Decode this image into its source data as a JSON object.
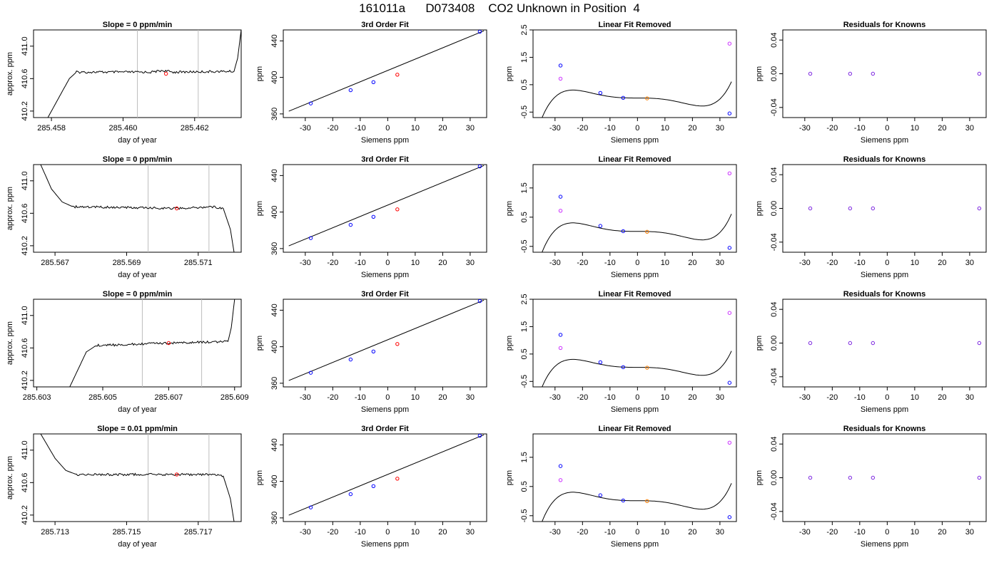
{
  "page_title": "161011a      D073408    CO2 Unknown in Position  4",
  "colors": {
    "axis": "#000000",
    "vline": "#bebebe",
    "known": "#0000ff",
    "unknown": "#ff0000",
    "removed_unknown": "#ff7f00",
    "outlier": "#cc33ff",
    "residual": "#7a22e0"
  },
  "chart_data": [
    {
      "panel": "row1-time",
      "type": "line",
      "title": "Slope =  0  ppm/min",
      "xlabel": "day of year",
      "ylabel": "approx. ppm",
      "xlim": [
        285.4575,
        285.4633
      ],
      "ylim": [
        410.12,
        411.2
      ],
      "xticks": [
        285.458,
        285.46,
        285.462
      ],
      "xtick_labels": [
        "285.458",
        "285.460",
        "285.462"
      ],
      "yticks": [
        410.2,
        410.6,
        411.0
      ],
      "ytick_labels": [
        "410.2",
        "410.6",
        "411.0"
      ],
      "vlines": [
        285.4604,
        285.4621
      ],
      "marker": [
        285.4612,
        410.66
      ],
      "profile": {
        "x": [
          285.4579,
          285.4585,
          285.4587,
          285.4608,
          285.4611,
          285.4614,
          285.4631,
          285.4632,
          285.4633
        ],
        "y": [
          410.12,
          410.6,
          410.68,
          410.68,
          410.7,
          410.68,
          410.69,
          410.85,
          411.2
        ]
      }
    },
    {
      "panel": "row1-fit",
      "type": "scatter",
      "title": "3rd Order Fit",
      "xlabel": "Siemens ppm",
      "ylabel": "ppm",
      "xlim": [
        -38,
        36
      ],
      "ylim": [
        356,
        452
      ],
      "xticks": [
        -30,
        -20,
        -10,
        0,
        10,
        20,
        30
      ],
      "yticks": [
        360,
        400,
        440
      ],
      "knowns": {
        "x": [
          -28,
          -13.5,
          -5.2,
          33.5
        ],
        "y": [
          371.5,
          386,
          394.8,
          450
        ]
      },
      "unknown": {
        "x": [
          3.5
        ],
        "y": [
          403
        ]
      },
      "line": {
        "x": [
          -36,
          35
        ],
        "y": [
          363,
          451
        ]
      }
    },
    {
      "panel": "row1-linear",
      "type": "scatter",
      "title": "Linear Fit Removed",
      "xlabel": "Siemens ppm",
      "ylabel": "ppm",
      "xlim": [
        -38,
        36
      ],
      "ylim": [
        -0.7,
        2.5
      ],
      "xticks": [
        -30,
        -20,
        -10,
        0,
        10,
        20,
        30
      ],
      "yticks": [
        -0.5,
        0.5,
        1.5,
        2.5
      ],
      "knowns": {
        "x": [
          -28,
          -13.5,
          -5.2,
          33.5
        ],
        "y": [
          1.2,
          0.2,
          0.02,
          -0.55
        ]
      },
      "unknown": {
        "x": [
          3.5
        ],
        "y": [
          0.0
        ]
      },
      "outliers": {
        "x": [
          -28,
          33.5
        ],
        "y": [
          0.72,
          2.0
        ]
      },
      "curve": {
        "x0": -36,
        "x1": 34.2,
        "a": 0.0135,
        "b": -0.0003,
        "c": -5.5e-05,
        "d": 6e-08
      }
    },
    {
      "panel": "row1-resid",
      "type": "scatter",
      "title": "Residuals for Knowns",
      "xlabel": "Siemens ppm",
      "ylabel": "ppm",
      "xlim": [
        -38,
        36
      ],
      "ylim": [
        -0.052,
        0.052
      ],
      "xticks": [
        -30,
        -20,
        -10,
        0,
        10,
        20,
        30
      ],
      "yticks": [
        -0.04,
        0.0,
        0.04
      ],
      "ytick_labels": [
        "-0.04",
        "0.00",
        "0.04"
      ],
      "points": {
        "x": [
          -28,
          -13.5,
          -5.2,
          33.5
        ],
        "y": [
          0,
          0,
          0,
          0
        ]
      }
    },
    {
      "panel": "row2-time",
      "type": "line",
      "title": "Slope =  0  ppm/min",
      "xlabel": "day of year",
      "ylabel": "approx. ppm",
      "xlim": [
        285.5664,
        285.5722
      ],
      "ylim": [
        410.12,
        411.2
      ],
      "xticks": [
        285.567,
        285.569,
        285.571
      ],
      "xtick_labels": [
        "285.567",
        "285.569",
        "285.571"
      ],
      "yticks": [
        410.2,
        410.6,
        411.0
      ],
      "ytick_labels": [
        "410.2",
        "410.6",
        "411.0"
      ],
      "vlines": [
        285.5696,
        285.5713
      ],
      "marker": [
        285.5704,
        410.66
      ],
      "profile": {
        "x": [
          285.5666,
          285.5669,
          285.5672,
          285.5675,
          285.5705,
          285.5714,
          285.5717,
          285.5719,
          285.572
        ],
        "y": [
          411.2,
          410.9,
          410.74,
          410.68,
          410.66,
          410.68,
          410.66,
          410.4,
          410.12
        ]
      }
    },
    {
      "panel": "row2-fit",
      "type": "scatter",
      "title": "3rd Order Fit",
      "xlabel": "Siemens ppm",
      "ylabel": "ppm",
      "xlim": [
        -38,
        36
      ],
      "ylim": [
        356,
        452
      ],
      "xticks": [
        -30,
        -20,
        -10,
        0,
        10,
        20,
        30
      ],
      "yticks": [
        360,
        400,
        440
      ],
      "knowns": {
        "x": [
          -28,
          -13.5,
          -5.2,
          33.5
        ],
        "y": [
          371.5,
          386,
          394.8,
          450
        ]
      },
      "unknown": {
        "x": [
          3.5
        ],
        "y": [
          403
        ]
      },
      "line": {
        "x": [
          -36,
          35
        ],
        "y": [
          363,
          451
        ]
      }
    },
    {
      "panel": "row2-linear",
      "type": "scatter",
      "title": "Linear Fit Removed",
      "xlabel": "Siemens ppm",
      "ylabel": "ppm",
      "xlim": [
        -38,
        36
      ],
      "ylim": [
        -0.7,
        2.3
      ],
      "xticks": [
        -30,
        -20,
        -10,
        0,
        10,
        20,
        30
      ],
      "yticks": [
        -0.5,
        0.5,
        1.5
      ],
      "knowns": {
        "x": [
          -28,
          -13.5,
          -5.2,
          33.5
        ],
        "y": [
          1.2,
          0.2,
          0.02,
          -0.55
        ]
      },
      "unknown": {
        "x": [
          3.5
        ],
        "y": [
          0.0
        ]
      },
      "outliers": {
        "x": [
          -28,
          33.5
        ],
        "y": [
          0.72,
          2.0
        ]
      },
      "curve": {
        "x0": -36,
        "x1": 34.2,
        "a": 0.0135,
        "b": -0.0003,
        "c": -5.5e-05,
        "d": 6e-08
      }
    },
    {
      "panel": "row2-resid",
      "type": "scatter",
      "title": "Residuals for Knowns",
      "xlabel": "Siemens ppm",
      "ylabel": "ppm",
      "xlim": [
        -38,
        36
      ],
      "ylim": [
        -0.052,
        0.052
      ],
      "xticks": [
        -30,
        -20,
        -10,
        0,
        10,
        20,
        30
      ],
      "yticks": [
        -0.04,
        0.0,
        0.04
      ],
      "ytick_labels": [
        "-0.04",
        "0.00",
        "0.04"
      ],
      "points": {
        "x": [
          -28,
          -13.5,
          -5.2,
          33.5
        ],
        "y": [
          0,
          0,
          0,
          0
        ]
      }
    },
    {
      "panel": "row3-time",
      "type": "line",
      "title": "Slope =  0  ppm/min",
      "xlabel": "day of year",
      "ylabel": "approx. ppm",
      "xlim": [
        285.6029,
        285.6092
      ],
      "ylim": [
        410.12,
        411.2
      ],
      "xticks": [
        285.603,
        285.605,
        285.607,
        285.609
      ],
      "xtick_labels": [
        "285.603",
        "285.605",
        "285.607",
        "285.609"
      ],
      "yticks": [
        410.2,
        410.6,
        411.0
      ],
      "ytick_labels": [
        "410.2",
        "410.6",
        "411.0"
      ],
      "vlines": [
        285.6062,
        285.608
      ],
      "marker": [
        285.607,
        410.66
      ],
      "profile": {
        "x": [
          285.604,
          285.6045,
          285.6048,
          285.607,
          285.6088,
          285.6089,
          285.609
        ],
        "y": [
          410.12,
          410.55,
          410.63,
          410.66,
          410.68,
          410.85,
          411.2
        ]
      }
    },
    {
      "panel": "row3-fit",
      "type": "scatter",
      "title": "3rd Order Fit",
      "xlabel": "Siemens ppm",
      "ylabel": "ppm",
      "xlim": [
        -38,
        36
      ],
      "ylim": [
        356,
        452
      ],
      "xticks": [
        -30,
        -20,
        -10,
        0,
        10,
        20,
        30
      ],
      "yticks": [
        360,
        400,
        440
      ],
      "knowns": {
        "x": [
          -28,
          -13.5,
          -5.2,
          33.5
        ],
        "y": [
          371.5,
          386,
          394.8,
          450
        ]
      },
      "unknown": {
        "x": [
          3.5
        ],
        "y": [
          403
        ]
      },
      "line": {
        "x": [
          -36,
          35
        ],
        "y": [
          363,
          451
        ]
      }
    },
    {
      "panel": "row3-linear",
      "type": "scatter",
      "title": "Linear Fit Removed",
      "xlabel": "Siemens ppm",
      "ylabel": "ppm",
      "xlim": [
        -38,
        36
      ],
      "ylim": [
        -0.7,
        2.5
      ],
      "xticks": [
        -30,
        -20,
        -10,
        0,
        10,
        20,
        30
      ],
      "yticks": [
        -0.5,
        0.5,
        1.5,
        2.5
      ],
      "knowns": {
        "x": [
          -28,
          -13.5,
          -5.2,
          33.5
        ],
        "y": [
          1.2,
          0.2,
          0.02,
          -0.55
        ]
      },
      "unknown": {
        "x": [
          3.5
        ],
        "y": [
          0.0
        ]
      },
      "outliers": {
        "x": [
          -28,
          33.5
        ],
        "y": [
          0.72,
          2.0
        ]
      },
      "curve": {
        "x0": -36,
        "x1": 34.2,
        "a": 0.0135,
        "b": -0.0003,
        "c": -5.5e-05,
        "d": 6e-08
      }
    },
    {
      "panel": "row3-resid",
      "type": "scatter",
      "title": "Residuals for Knowns",
      "xlabel": "Siemens ppm",
      "ylabel": "ppm",
      "xlim": [
        -38,
        36
      ],
      "ylim": [
        -0.052,
        0.052
      ],
      "xticks": [
        -30,
        -20,
        -10,
        0,
        10,
        20,
        30
      ],
      "yticks": [
        -0.04,
        0.0,
        0.04
      ],
      "ytick_labels": [
        "-0.04",
        "0.00",
        "0.04"
      ],
      "points": {
        "x": [
          -28,
          -13.5,
          -5.2,
          33.5
        ],
        "y": [
          0,
          0,
          0,
          0
        ]
      }
    },
    {
      "panel": "row4-time",
      "type": "line",
      "title": "Slope =  0.01  ppm/min",
      "xlabel": "day of year",
      "ylabel": "approx. ppm",
      "xlim": [
        285.7124,
        285.7182
      ],
      "ylim": [
        410.12,
        411.2
      ],
      "xticks": [
        285.713,
        285.715,
        285.717
      ],
      "xtick_labels": [
        "285.713",
        "285.715",
        "285.717"
      ],
      "yticks": [
        410.2,
        410.6,
        411.0
      ],
      "ytick_labels": [
        "410.2",
        "410.6",
        "411.0"
      ],
      "vlines": [
        285.7156,
        285.7173
      ],
      "marker": [
        285.7164,
        410.7
      ],
      "profile": {
        "x": [
          285.7126,
          285.713,
          285.7133,
          285.7136,
          285.7164,
          285.7174,
          285.7177,
          285.7179,
          285.718
        ],
        "y": [
          411.2,
          410.9,
          410.75,
          410.7,
          410.7,
          410.7,
          410.68,
          410.4,
          410.12
        ]
      }
    },
    {
      "panel": "row4-fit",
      "type": "scatter",
      "title": "3rd Order Fit",
      "xlabel": "Siemens ppm",
      "ylabel": "ppm",
      "xlim": [
        -38,
        36
      ],
      "ylim": [
        356,
        452
      ],
      "xticks": [
        -30,
        -20,
        -10,
        0,
        10,
        20,
        30
      ],
      "yticks": [
        360,
        400,
        440
      ],
      "knowns": {
        "x": [
          -28,
          -13.5,
          -5.2,
          33.5
        ],
        "y": [
          371.5,
          386,
          394.8,
          450
        ]
      },
      "unknown": {
        "x": [
          3.5
        ],
        "y": [
          403
        ]
      },
      "line": {
        "x": [
          -36,
          35
        ],
        "y": [
          363,
          451
        ]
      }
    },
    {
      "panel": "row4-linear",
      "type": "scatter",
      "title": "Linear Fit Removed",
      "xlabel": "Siemens ppm",
      "ylabel": "ppm",
      "xlim": [
        -38,
        36
      ],
      "ylim": [
        -0.7,
        2.3
      ],
      "xticks": [
        -30,
        -20,
        -10,
        0,
        10,
        20,
        30
      ],
      "yticks": [
        -0.5,
        0.5,
        1.5
      ],
      "knowns": {
        "x": [
          -28,
          -13.5,
          -5.2,
          33.5
        ],
        "y": [
          1.2,
          0.2,
          0.02,
          -0.55
        ]
      },
      "unknown": {
        "x": [
          3.5
        ],
        "y": [
          0.0
        ]
      },
      "outliers": {
        "x": [
          -28,
          33.5
        ],
        "y": [
          0.72,
          2.0
        ]
      },
      "curve": {
        "x0": -36,
        "x1": 34.2,
        "a": 0.0135,
        "b": -0.0003,
        "c": -5.5e-05,
        "d": 6e-08
      }
    },
    {
      "panel": "row4-resid",
      "type": "scatter",
      "title": "Residuals for Knowns",
      "xlabel": "Siemens ppm",
      "ylabel": "ppm",
      "xlim": [
        -38,
        36
      ],
      "ylim": [
        -0.052,
        0.052
      ],
      "xticks": [
        -30,
        -20,
        -10,
        0,
        10,
        20,
        30
      ],
      "yticks": [
        -0.04,
        0.0,
        0.04
      ],
      "ytick_labels": [
        "-0.04",
        "0.00",
        "0.04"
      ],
      "points": {
        "x": [
          -28,
          -13.5,
          -5.2,
          33.5
        ],
        "y": [
          0,
          0,
          0,
          0
        ]
      }
    }
  ]
}
